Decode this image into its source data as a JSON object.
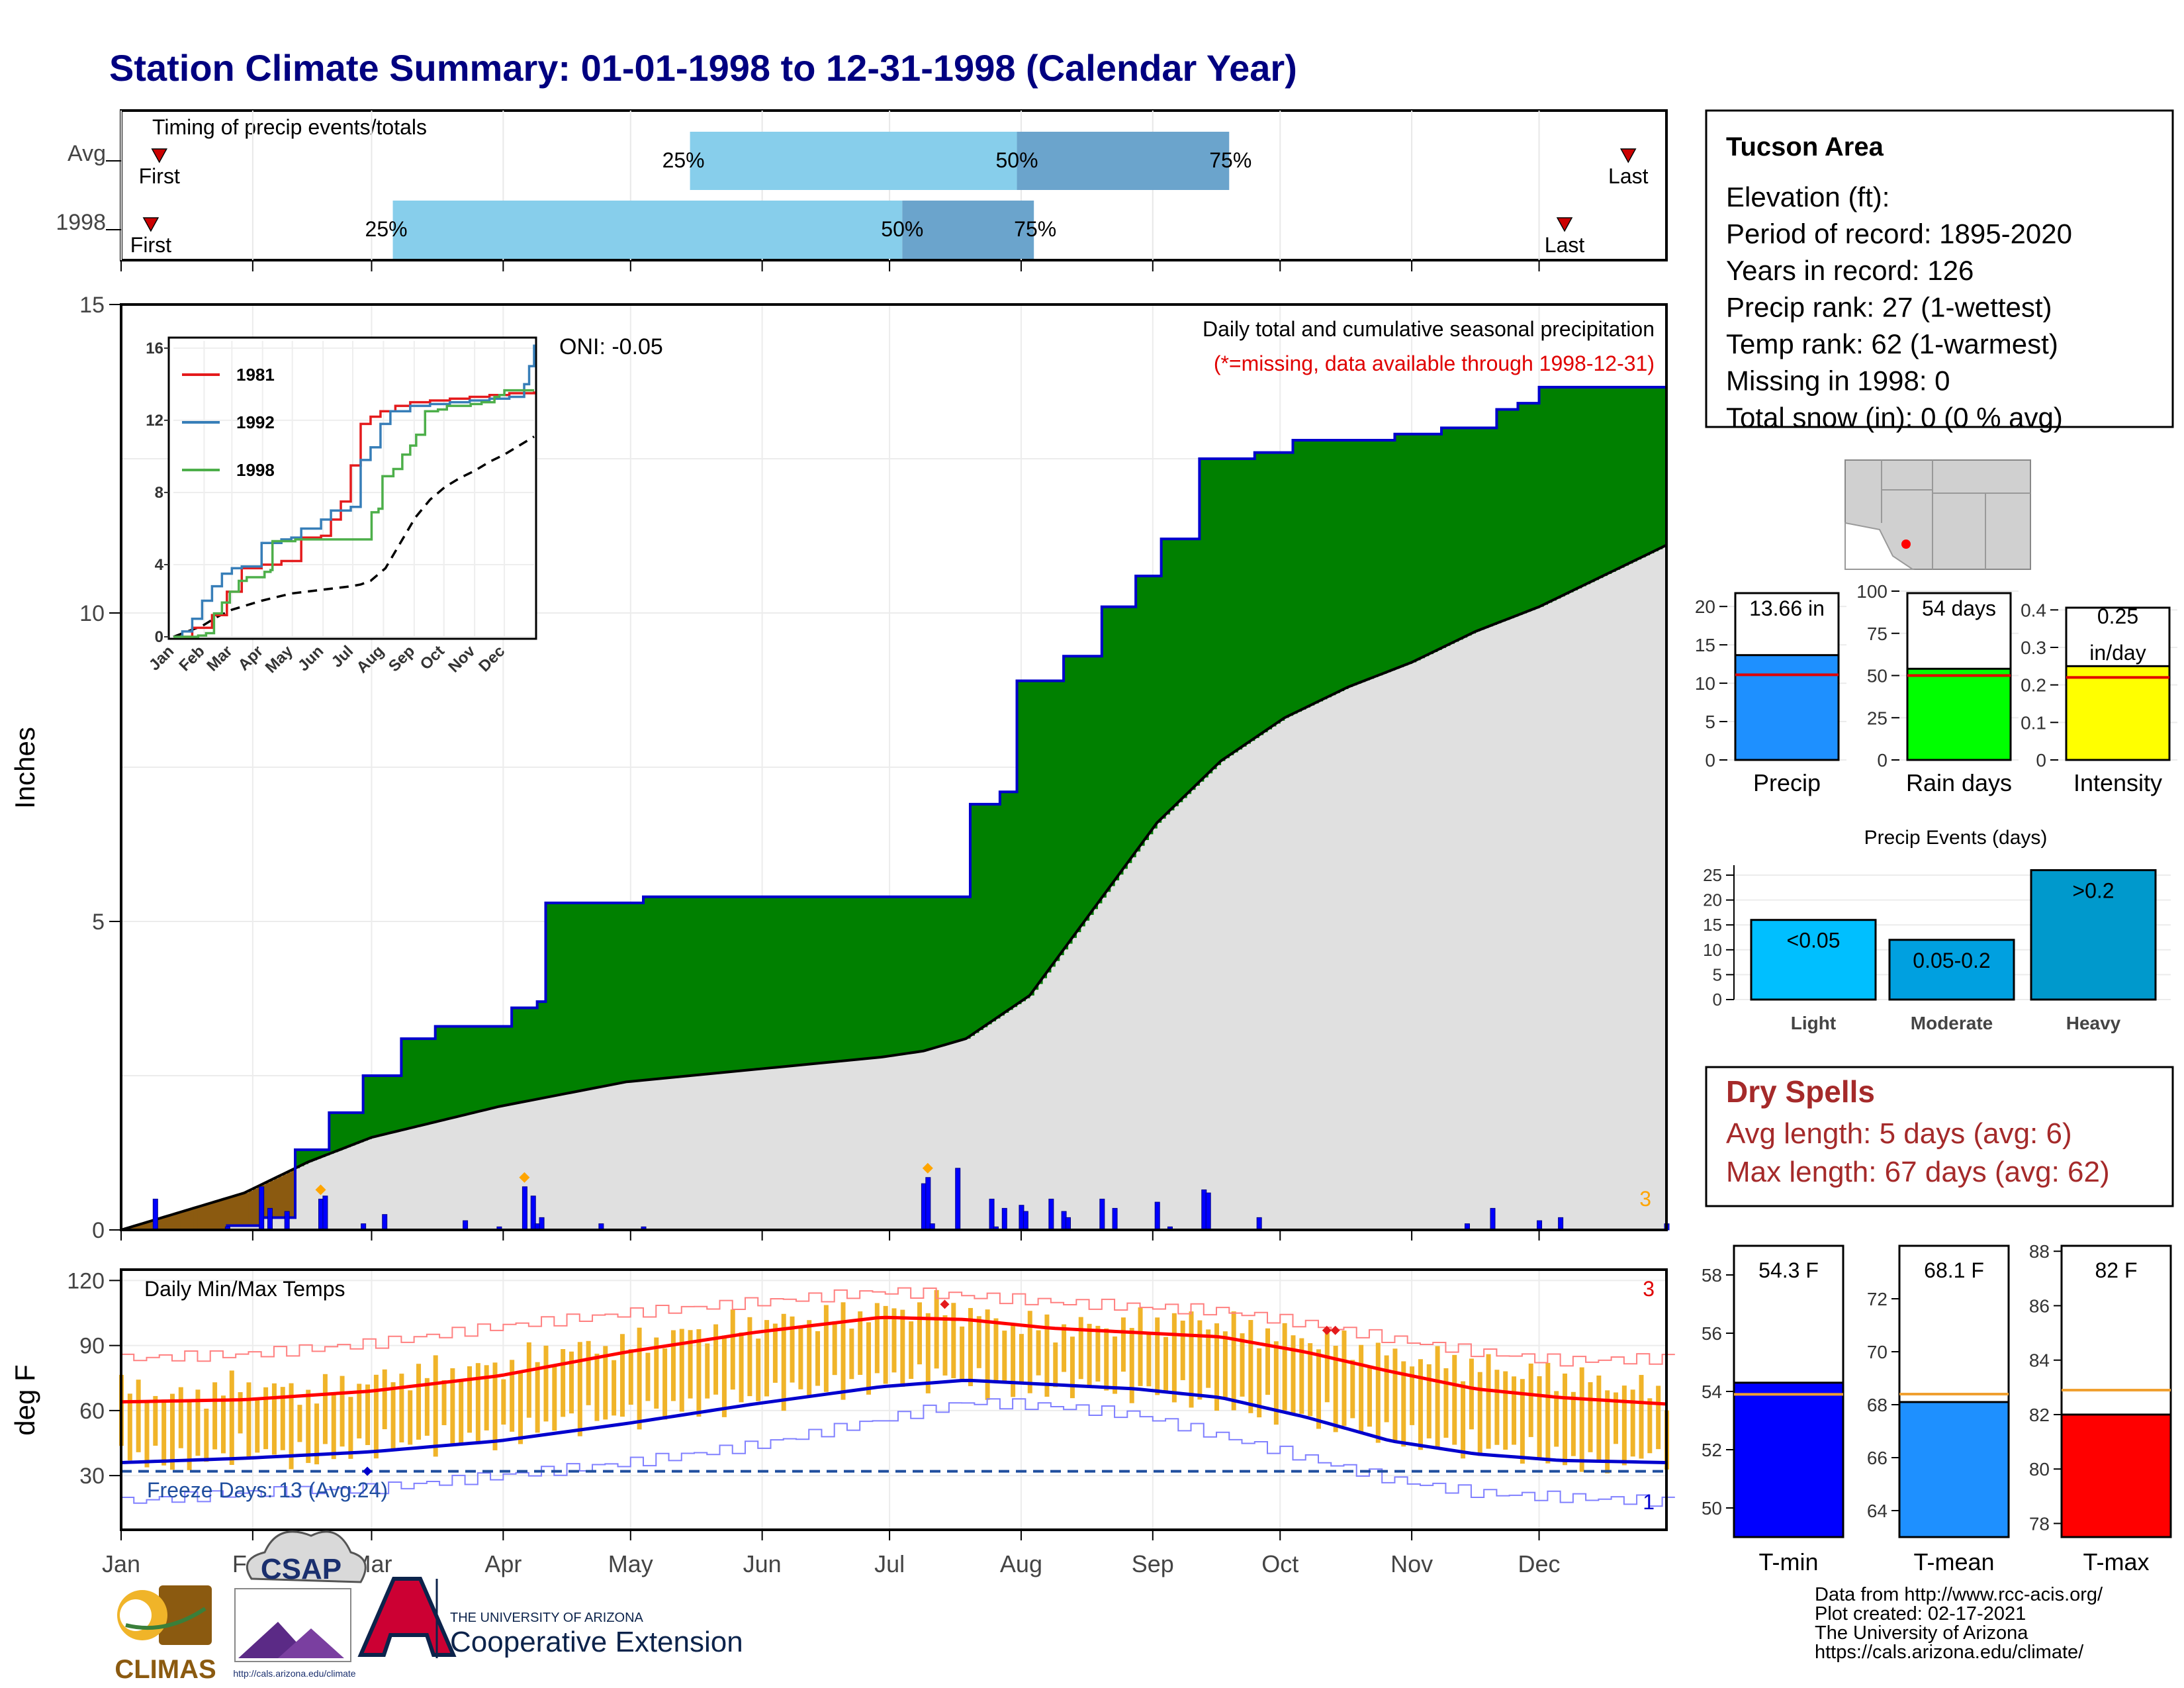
{
  "title": "Station Climate Summary: 01-01-1998 to 12-31-1998 (Calendar Year)",
  "months": [
    "Jan",
    "Feb",
    "Mar",
    "Apr",
    "May",
    "Jun",
    "Jul",
    "Aug",
    "Sep",
    "Oct",
    "Nov",
    "Dec"
  ],
  "timing": {
    "title": "Timing of precip events/totals",
    "rows": [
      {
        "label": "Avg",
        "first_label": "First",
        "last_label": "Last",
        "first_doy": 10,
        "last_doy": 356,
        "q25_label": "25%",
        "q50_label": "50%",
        "q75_label": "75%",
        "q25_doy": 135,
        "q50_doy": 212,
        "q75_doy": 262
      },
      {
        "label": "1998",
        "first_label": "First",
        "last_label": "Last",
        "first_doy": 8,
        "last_doy": 341,
        "q25_label": "25%",
        "q50_label": "50%",
        "q75_label": "75%",
        "q25_doy": 65,
        "q50_doy": 185,
        "q75_doy": 216
      }
    ],
    "colors": {
      "light": "#87ceeb",
      "dark": "#6ba4cc",
      "marker": "#cc0000"
    }
  },
  "chart_data": [
    {
      "type": "area",
      "name": "Daily total and cumulative seasonal precipitation",
      "title": "Daily total and cumulative seasonal precipitation",
      "subtitle": "(*=missing, data available through 1998-12-31)",
      "oni_label": "ONI: -0.05",
      "ylabel": "Inches",
      "ylim": [
        0,
        15
      ],
      "yticks": [
        0,
        5,
        10,
        15
      ],
      "xlim": [
        1,
        365
      ],
      "corner_count": "3",
      "cumulative_1998": {
        "x": [
          1,
          26,
          34,
          42,
          50,
          58,
          67,
          75,
          93,
          99,
          101,
          124,
          200,
          201,
          208,
          212,
          223,
          232,
          240,
          246,
          255,
          268,
          277,
          301,
          312,
          325,
          330,
          335,
          365
        ],
        "y": [
          0,
          0.07,
          0.2,
          1.3,
          1.9,
          2.5,
          3.1,
          3.3,
          3.6,
          3.7,
          5.3,
          5.4,
          5.4,
          6.9,
          7.1,
          8.9,
          9.3,
          10.1,
          10.6,
          11.2,
          12.5,
          12.6,
          12.8,
          12.9,
          13.0,
          13.3,
          13.4,
          13.66,
          13.66
        ]
      },
      "cumulative_avg": {
        "x": [
          1,
          30,
          45,
          60,
          90,
          120,
          150,
          180,
          190,
          200,
          215,
          230,
          245,
          260,
          275,
          290,
          305,
          320,
          335,
          350,
          365
        ],
        "y": [
          0,
          0.6,
          1.1,
          1.5,
          2.0,
          2.4,
          2.6,
          2.8,
          2.9,
          3.1,
          3.8,
          5.2,
          6.6,
          7.6,
          8.3,
          8.8,
          9.2,
          9.7,
          10.1,
          10.6,
          11.1
        ]
      },
      "daily_bars": {
        "x": [
          9,
          26,
          34,
          36,
          40,
          48,
          49,
          58,
          63,
          82,
          90,
          96,
          98,
          99,
          100,
          114,
          124,
          190,
          191,
          192,
          198,
          206,
          207,
          209,
          213,
          214,
          220,
          223,
          224,
          232,
          235,
          245,
          248,
          256,
          257,
          269,
          318,
          324,
          335,
          340,
          365
        ],
        "y": [
          0.5,
          0.05,
          0.7,
          0.35,
          0.3,
          0.5,
          0.55,
          0.1,
          0.25,
          0.15,
          0.05,
          0.7,
          0.55,
          0.1,
          0.2,
          0.1,
          0.05,
          0.75,
          0.85,
          0.1,
          1.0,
          0.5,
          0.05,
          0.35,
          0.4,
          0.3,
          0.5,
          0.3,
          0.2,
          0.5,
          0.35,
          0.45,
          0.05,
          0.65,
          0.6,
          0.2,
          0.1,
          0.35,
          0.15,
          0.2,
          0.1
        ]
      },
      "extreme_markers_doy": [
        48,
        96,
        191
      ],
      "colors": {
        "above_avg": "#008000",
        "below_avg": "#8b5a10",
        "avg_area": "#e0e0e0",
        "line": "#0000cd",
        "bars": "#0000ff",
        "marker": "#ffa500"
      }
    },
    {
      "type": "line",
      "name": "inset cumulative precipitation",
      "ylim": [
        0,
        16
      ],
      "yticks": [
        0,
        4,
        8,
        12,
        16
      ],
      "series": [
        {
          "name": "1981",
          "color": "#e41a1c",
          "x": [
            1,
            20,
            40,
            55,
            70,
            90,
            110,
            130,
            150,
            160,
            170,
            180,
            190,
            200,
            210,
            225,
            240,
            260,
            280,
            300,
            320,
            340,
            365
          ],
          "y": [
            0,
            0.5,
            1.2,
            2.5,
            3.8,
            4.0,
            4.2,
            5.5,
            5.6,
            6.5,
            7.5,
            9.5,
            11.8,
            12.2,
            12.5,
            12.8,
            13.0,
            13.1,
            13.2,
            13.3,
            13.4,
            13.5,
            13.6
          ]
        },
        {
          "name": "1992",
          "color": "#377eb8",
          "x": [
            1,
            10,
            20,
            30,
            40,
            50,
            60,
            70,
            90,
            110,
            120,
            130,
            150,
            160,
            180,
            190,
            200,
            210,
            220,
            240,
            260,
            280,
            300,
            320,
            340,
            355,
            360,
            365
          ],
          "y": [
            0,
            0.3,
            1.0,
            2.0,
            2.8,
            3.5,
            3.8,
            3.9,
            5.2,
            5.4,
            5.5,
            6.0,
            6.5,
            7.0,
            7.2,
            9.8,
            10.5,
            11.8,
            12.5,
            12.8,
            12.9,
            13.0,
            13.1,
            13.2,
            13.3,
            14.0,
            15.0,
            16.2
          ]
        },
        {
          "name": "1998",
          "color": "#4daf4a",
          "x": [
            1,
            26,
            34,
            42,
            50,
            58,
            67,
            75,
            93,
            99,
            101,
            124,
            200,
            201,
            208,
            212,
            223,
            232,
            240,
            246,
            255,
            268,
            277,
            301,
            312,
            325,
            330,
            335,
            365
          ],
          "y": [
            0,
            0.07,
            0.2,
            1.3,
            1.9,
            2.5,
            3.1,
            3.3,
            3.6,
            3.7,
            5.3,
            5.4,
            5.4,
            6.9,
            7.1,
            8.9,
            9.3,
            10.1,
            10.6,
            11.2,
            12.5,
            12.6,
            12.8,
            12.9,
            13.0,
            13.3,
            13.4,
            13.66,
            13.66
          ]
        }
      ],
      "avg_dashed": {
        "x": [
          1,
          30,
          45,
          60,
          90,
          120,
          150,
          180,
          190,
          200,
          215,
          230,
          245,
          260,
          275,
          290,
          305,
          320,
          335,
          350,
          365
        ],
        "y": [
          0,
          0.6,
          1.1,
          1.5,
          2.0,
          2.4,
          2.6,
          2.8,
          2.9,
          3.1,
          3.8,
          5.2,
          6.6,
          7.6,
          8.3,
          8.8,
          9.2,
          9.7,
          10.1,
          10.6,
          11.1
        ]
      }
    },
    {
      "type": "line",
      "name": "Daily Min/Max Temps",
      "title": "Daily Min/Max Temps",
      "ylabel": "deg F",
      "ylim": [
        5,
        125
      ],
      "yticks": [
        30,
        60,
        90,
        120
      ],
      "freeze_label": "Freeze Days: 13 (Avg:24)",
      "freeze_line": 32,
      "max_count": "3",
      "min_count": "1",
      "avg_max": {
        "x": [
          1,
          30,
          60,
          90,
          120,
          150,
          180,
          200,
          220,
          240,
          260,
          280,
          300,
          320,
          340,
          365
        ],
        "y": [
          64,
          65,
          69,
          76,
          87,
          96,
          103,
          102,
          98,
          96,
          94,
          87,
          78,
          70,
          66,
          63
        ]
      },
      "avg_min": {
        "x": [
          1,
          30,
          60,
          90,
          120,
          150,
          180,
          200,
          220,
          240,
          260,
          280,
          300,
          320,
          340,
          365
        ],
        "y": [
          36,
          38,
          41,
          46,
          54,
          63,
          71,
          74,
          72,
          70,
          66,
          57,
          46,
          40,
          37,
          36
        ]
      },
      "rec_max": {
        "x": [
          1,
          30,
          60,
          90,
          120,
          150,
          180,
          200,
          220,
          240,
          260,
          280,
          300,
          320,
          340,
          365
        ],
        "y": [
          84,
          86,
          91,
          99,
          105,
          110,
          115,
          113,
          110,
          108,
          106,
          100,
          93,
          87,
          83,
          84
        ]
      },
      "rec_min": {
        "x": [
          1,
          30,
          60,
          90,
          120,
          150,
          180,
          200,
          220,
          240,
          260,
          280,
          300,
          320,
          340,
          365
        ],
        "y": [
          18,
          22,
          24,
          30,
          36,
          44,
          56,
          64,
          62,
          58,
          48,
          38,
          28,
          22,
          20,
          18
        ]
      },
      "obs_max": {
        "x": [
          1,
          15,
          30,
          45,
          60,
          75,
          90,
          105,
          120,
          135,
          150,
          165,
          180,
          195,
          210,
          225,
          240,
          255,
          270,
          285,
          300,
          315,
          330,
          345,
          365
        ],
        "y": [
          70,
          66,
          72,
          68,
          74,
          78,
          80,
          88,
          90,
          96,
          100,
          102,
          106,
          108,
          100,
          98,
          100,
          102,
          96,
          92,
          85,
          82,
          78,
          74,
          68
        ]
      },
      "obs_min": {
        "x": [
          1,
          15,
          30,
          45,
          60,
          75,
          90,
          105,
          120,
          135,
          150,
          165,
          180,
          195,
          210,
          225,
          240,
          255,
          270,
          285,
          300,
          315,
          330,
          345,
          365
        ],
        "y": [
          40,
          36,
          42,
          38,
          44,
          46,
          48,
          55,
          58,
          62,
          66,
          70,
          74,
          76,
          70,
          72,
          70,
          66,
          60,
          56,
          48,
          44,
          42,
          36,
          40
        ]
      },
      "record_markers": [
        {
          "doy": 195,
          "temp": 109,
          "color": "#e41a1c"
        },
        {
          "doy": 285,
          "temp": 97,
          "color": "#e41a1c"
        },
        {
          "doy": 287,
          "temp": 97,
          "color": "#e41a1c"
        },
        {
          "doy": 59,
          "temp": 32,
          "color": "#0000cd"
        }
      ],
      "colors": {
        "band": "#f0b429",
        "avg_max": "#ff0000",
        "avg_min": "#0000cd",
        "rec_max": "#ff8080",
        "rec_min": "#8080ff",
        "freeze": "#1f4e9e"
      }
    },
    {
      "type": "bar",
      "name": "Precip",
      "categories": [
        "Precip"
      ],
      "values": [
        13.66
      ],
      "avg": 11.1,
      "ylim": [
        0,
        22
      ],
      "yticks": [
        0,
        5,
        10,
        15,
        20
      ],
      "value_label": "13.66 in",
      "color": "#1e90ff"
    },
    {
      "type": "bar",
      "name": "Rain days",
      "categories": [
        "Rain days"
      ],
      "values": [
        54
      ],
      "avg": 50,
      "ylim": [
        0,
        100
      ],
      "yticks": [
        0,
        25,
        50,
        75,
        100
      ],
      "value_label": "54 days",
      "color": "#00ff00"
    },
    {
      "type": "bar",
      "name": "Intensity",
      "categories": [
        "Intensity"
      ],
      "values": [
        0.25
      ],
      "avg": 0.22,
      "ylim": [
        0,
        0.45
      ],
      "yticks": [
        0.0,
        0.1,
        0.2,
        0.3,
        0.4
      ],
      "value_label": "0.25",
      "value_label2": "in/day",
      "color": "#ffff00"
    },
    {
      "type": "bar",
      "name": "Precip Events (days)",
      "title": "Precip Events (days)",
      "categories": [
        "Light",
        "Moderate",
        "Heavy"
      ],
      "values": [
        16,
        12,
        26
      ],
      "bar_labels": [
        "<0.05",
        "0.05-0.2",
        ">0.2"
      ],
      "ylim": [
        0,
        27
      ],
      "yticks": [
        0,
        5,
        10,
        15,
        20,
        25
      ],
      "colors": [
        "#00bfff",
        "#00a0e0",
        "#0099cc"
      ]
    },
    {
      "type": "bar",
      "name": "T-min",
      "categories": [
        "T-min"
      ],
      "values": [
        54.3
      ],
      "avg": 53.9,
      "ylim": [
        49,
        59
      ],
      "yticks": [
        50,
        52,
        54,
        56,
        58
      ],
      "value_label": "54.3 F",
      "color": "#0000ff"
    },
    {
      "type": "bar",
      "name": "T-mean",
      "categories": [
        "T-mean"
      ],
      "values": [
        68.1
      ],
      "avg": 68.4,
      "ylim": [
        63,
        74
      ],
      "yticks": [
        64,
        66,
        68,
        70,
        72
      ],
      "value_label": "68.1 F",
      "color": "#1e90ff"
    },
    {
      "type": "bar",
      "name": "T-max",
      "categories": [
        "T-max"
      ],
      "values": [
        82
      ],
      "avg": 82.9,
      "ylim": [
        77.5,
        88.2
      ],
      "yticks": [
        78,
        80,
        82,
        84,
        86,
        88
      ],
      "value_label": "82 F",
      "color": "#ff0000"
    }
  ],
  "info": {
    "title": "Tucson Area",
    "lines": [
      "Elevation (ft):",
      "Period of record: 1895-2020",
      "Years in record: 126",
      "Precip rank: 27 (1-wettest)",
      "Temp rank: 62 (1-warmest)",
      "Missing in 1998: 0",
      "Total snow (in): 0 (0 % avg)"
    ]
  },
  "dry": {
    "title": "Dry Spells",
    "lines": [
      "Avg length: 5 days (avg: 6)",
      "Max length: 67 days (avg: 62)"
    ]
  },
  "footer": [
    "Data from http://www.rcc-acis.org/",
    "Plot created: 02-17-2021",
    "The University of Arizona",
    "https://cals.arizona.edu/climate/"
  ],
  "logos": {
    "climas": "CLIMAS",
    "csap": "CSAP",
    "csap_url": "http://cals.arizona.edu/climate",
    "ua_small": "THE UNIVERSITY OF ARIZONA",
    "ua_big": "Cooperative Extension"
  },
  "icons": {
    "map": "arizona-region-map-icon"
  }
}
